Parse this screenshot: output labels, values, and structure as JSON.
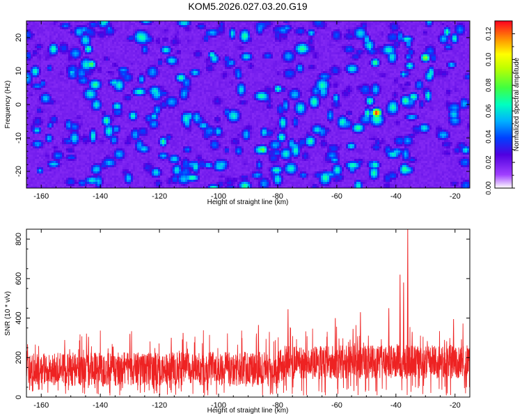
{
  "chart_data": [
    {
      "type": "heatmap",
      "title": "KOM5.2026.027.03.20.G19",
      "xlabel": "Height of straight line (km)",
      "ylabel": "Frequency (Hz)",
      "xlim": [
        -165,
        -15
      ],
      "ylim": [
        -25,
        25
      ],
      "x_ticks": [
        -160,
        -140,
        -120,
        -100,
        -80,
        -60,
        -40,
        -20
      ],
      "y_ticks": [
        20,
        10,
        0,
        -10,
        -20
      ],
      "colorbar": {
        "label": "Normalized spectral amplitude",
        "range": [
          0,
          0.13
        ],
        "ticks": [
          0.0,
          0.02,
          0.04,
          0.06,
          0.08,
          0.1,
          0.12
        ],
        "tick_labels": [
          "0.00",
          "0.02",
          "0.04",
          "0.06",
          "0.08",
          "0.10",
          "0.12"
        ]
      },
      "peaks": [
        {
          "x": -46.5,
          "y": -2.5,
          "value": 0.13
        },
        {
          "x": -30.0,
          "y": 14.0,
          "value": 0.09
        },
        {
          "x": -85.0,
          "y": -13.5,
          "value": 0.085
        },
        {
          "x": -143.0,
          "y": 12.0,
          "value": 0.08
        },
        {
          "x": -47.0,
          "y": 12.5,
          "value": 0.075
        }
      ]
    },
    {
      "type": "line",
      "xlabel": "Height of straight line (km)",
      "ylabel": "SNR (10 * v/v)",
      "xlim": [
        -165,
        -15
      ],
      "ylim": [
        0,
        850
      ],
      "x_ticks": [
        -160,
        -140,
        -120,
        -100,
        -80,
        -60,
        -40,
        -20
      ],
      "y_ticks": [
        0,
        200,
        400,
        600,
        800
      ],
      "series": [
        {
          "name": "SNR",
          "baseline": {
            "x": [
              -165,
              -80,
              -78,
              -15
            ],
            "y": [
              140,
              145,
              175,
              180
            ]
          },
          "spikes": [
            {
              "x": -36.0,
              "y": 850
            },
            {
              "x": -38.6,
              "y": 620
            },
            {
              "x": -37.4,
              "y": 580
            },
            {
              "x": -42.4,
              "y": 450
            },
            {
              "x": -52.0,
              "y": 430
            },
            {
              "x": -60.5,
              "y": 400
            },
            {
              "x": -76.5,
              "y": 445
            },
            {
              "x": -86.5,
              "y": 365
            },
            {
              "x": -20.5,
              "y": 395
            },
            {
              "x": -54.5,
              "y": 345
            },
            {
              "x": -34.5,
              "y": 330
            },
            {
              "x": -112.0,
              "y": 325
            },
            {
              "x": -130.0,
              "y": 320
            },
            {
              "x": -116.0,
              "y": 300
            },
            {
              "x": -144.0,
              "y": 305
            }
          ]
        }
      ]
    }
  ]
}
